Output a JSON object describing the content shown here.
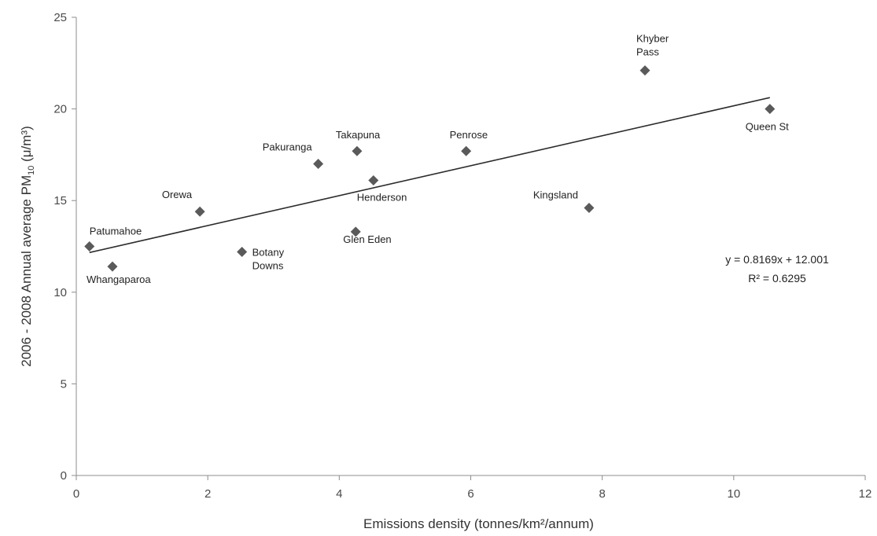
{
  "chart_data": {
    "type": "scatter",
    "title": "",
    "xlabel": "Emissions density (tonnes/km²/annum)",
    "ylabel_parts": {
      "before": "2006 - 2008 Annual average PM",
      "sub": "10",
      "after": " (μ/m³)"
    },
    "xlim": [
      0,
      12
    ],
    "ylim": [
      0,
      25
    ],
    "xticks": [
      0,
      2,
      4,
      6,
      8,
      10,
      12
    ],
    "yticks": [
      0,
      5,
      10,
      15,
      20,
      25
    ],
    "grid": false,
    "marker_color": "#5a5a5a",
    "points": [
      {
        "name": "Patumahoe",
        "x": 0.2,
        "y": 12.5,
        "label_lines": [
          "Patumahoe"
        ],
        "anchor": "start",
        "dx": 0,
        "dy": -15
      },
      {
        "name": "Whangaparoa",
        "x": 0.55,
        "y": 11.4,
        "label_lines": [
          "Whangaparoa"
        ],
        "anchor": "start",
        "dx": -33,
        "dy": 21
      },
      {
        "name": "Orewa",
        "x": 1.88,
        "y": 14.4,
        "label_lines": [
          "Orewa"
        ],
        "anchor": "end",
        "dx": -10,
        "dy": -17
      },
      {
        "name": "Botany Downs",
        "x": 2.52,
        "y": 12.2,
        "label_lines": [
          "Botany",
          "Downs"
        ],
        "anchor": "start",
        "dx": 13,
        "dy": 5
      },
      {
        "name": "Pakuranga",
        "x": 3.68,
        "y": 17.0,
        "label_lines": [
          "Pakuranga"
        ],
        "anchor": "end",
        "dx": -8,
        "dy": -17
      },
      {
        "name": "Takapuna",
        "x": 4.27,
        "y": 17.7,
        "label_lines": [
          "Takapuna"
        ],
        "anchor": "start",
        "dx": -27,
        "dy": -16
      },
      {
        "name": "Henderson",
        "x": 4.52,
        "y": 16.1,
        "label_lines": [
          "Henderson"
        ],
        "anchor": "start",
        "dx": -21,
        "dy": 26
      },
      {
        "name": "Glen Eden",
        "x": 4.25,
        "y": 13.3,
        "label_lines": [
          "Glen Eden"
        ],
        "anchor": "start",
        "dx": -16,
        "dy": 14
      },
      {
        "name": "Penrose",
        "x": 5.93,
        "y": 17.7,
        "label_lines": [
          "Penrose"
        ],
        "anchor": "start",
        "dx": -21,
        "dy": -16
      },
      {
        "name": "Kingsland",
        "x": 7.8,
        "y": 14.6,
        "label_lines": [
          "Kingsland"
        ],
        "anchor": "end",
        "dx": -14,
        "dy": -12
      },
      {
        "name": "Khyber Pass",
        "x": 8.65,
        "y": 22.1,
        "label_lines": [
          "Khyber",
          "Pass"
        ],
        "anchor": "start",
        "dx": -11,
        "dy": -36
      },
      {
        "name": "Queen St",
        "x": 10.55,
        "y": 20.0,
        "label_lines": [
          "Queen St"
        ],
        "anchor": "start",
        "dx": -31,
        "dy": 27
      }
    ],
    "trendline": {
      "slope": 0.8169,
      "intercept": 12.001,
      "x_range": [
        0.2,
        10.55
      ],
      "equation": "y = 0.8169x + 12.001",
      "r2_text": "R² = 0.6295"
    }
  }
}
